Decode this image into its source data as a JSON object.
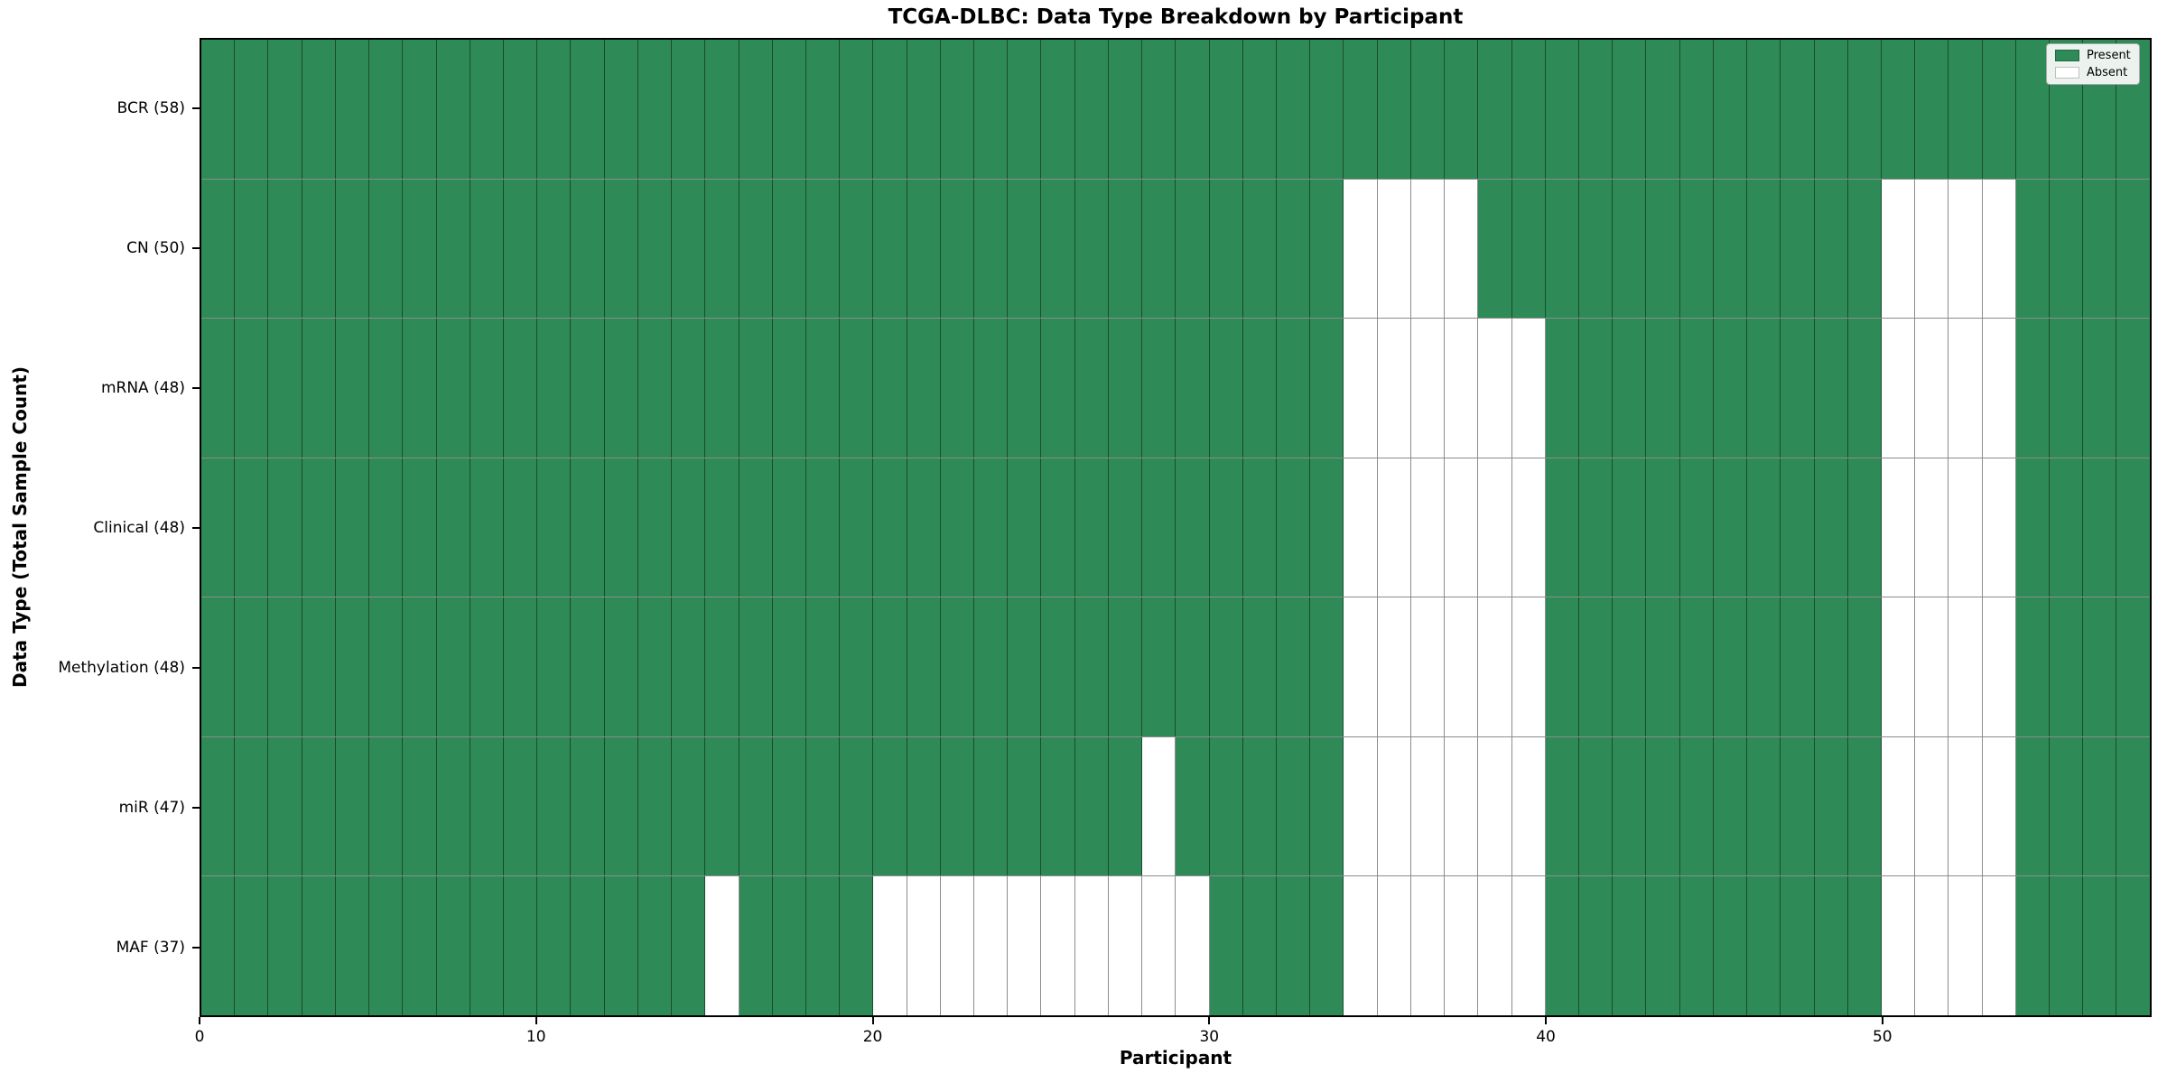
{
  "chart_data": {
    "type": "heatmap",
    "title": "TCGA-DLBC: Data Type Breakdown by Participant",
    "xlabel": "Participant",
    "ylabel": "Data Type (Total Sample Count)",
    "n_participants": 58,
    "x_ticks": [
      0,
      10,
      20,
      30,
      40,
      50
    ],
    "legend": [
      {
        "label": "Present",
        "color": "#2e8b57"
      },
      {
        "label": "Absent",
        "color": "#ffffff"
      }
    ],
    "colors": {
      "present": "#2e8b57",
      "absent": "#ffffff",
      "grid": "rgba(0,0,0,0.45)",
      "spine": "#000000"
    },
    "rows": [
      {
        "label": "BCR (58)",
        "present_count": 58,
        "absent": []
      },
      {
        "label": "CN (50)",
        "present_count": 50,
        "absent": [
          34,
          35,
          36,
          37,
          50,
          51,
          52,
          53
        ]
      },
      {
        "label": "mRNA (48)",
        "present_count": 48,
        "absent": [
          34,
          35,
          36,
          37,
          38,
          39,
          50,
          51,
          52,
          53
        ]
      },
      {
        "label": "Clinical (48)",
        "present_count": 48,
        "absent": [
          34,
          35,
          36,
          37,
          38,
          39,
          50,
          51,
          52,
          53
        ]
      },
      {
        "label": "Methylation (48)",
        "present_count": 48,
        "absent": [
          34,
          35,
          36,
          37,
          38,
          39,
          50,
          51,
          52,
          53
        ]
      },
      {
        "label": "miR (47)",
        "present_count": 47,
        "absent": [
          28,
          34,
          35,
          36,
          37,
          38,
          39,
          50,
          51,
          52,
          53
        ]
      },
      {
        "label": "MAF (37)",
        "present_count": 37,
        "absent": [
          15,
          20,
          21,
          22,
          23,
          24,
          25,
          26,
          27,
          28,
          29,
          34,
          35,
          36,
          37,
          38,
          39,
          50,
          51,
          52,
          53
        ]
      }
    ]
  }
}
